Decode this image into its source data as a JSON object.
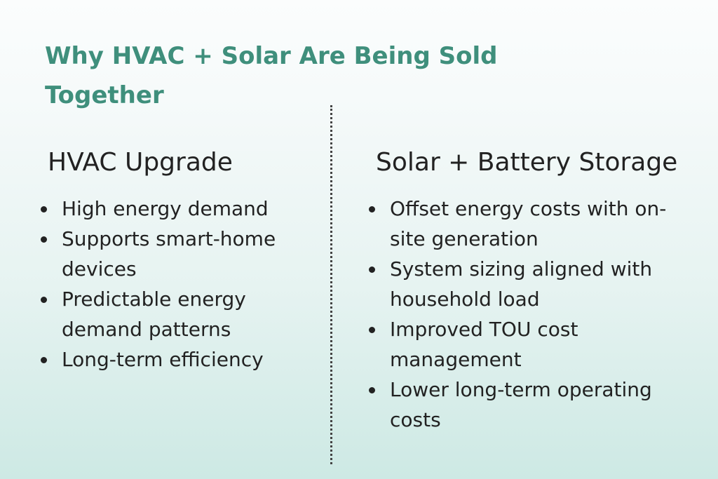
{
  "title": "Why HVAC + Solar Are Being Sold Together",
  "columns": [
    {
      "heading": "HVAC Upgrade",
      "items": [
        "High energy demand",
        "Supports smart-home devices",
        "Predictable energy demand patterns",
        "Long-term efficiency"
      ]
    },
    {
      "heading": "Solar + Battery Storage",
      "items": [
        "Offset energy costs with on-site generation",
        "System sizing aligned with household load",
        "Improved TOU cost management",
        "Lower long-term operating costs"
      ]
    }
  ]
}
